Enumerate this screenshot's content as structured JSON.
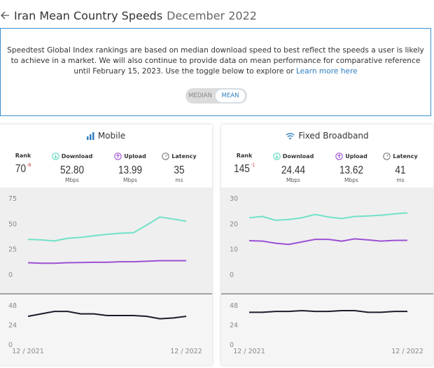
{
  "header": {
    "title": "Iran Mean Country Speeds",
    "date": "December 2022"
  },
  "info": {
    "text": "Speedtest Global Index rankings are based on median download speed to best reflect the speeds a user is likely to achieve in a market. We will also continue to provide data on mean performance for comparative reference until February 15, 2023. Use the toggle below to explore or",
    "link": "Learn more here"
  },
  "toggle": {
    "options": [
      "MEDIAN",
      "MEAN"
    ]
  },
  "panels": [
    {
      "title": "Mobile",
      "stats": [
        {
          "label": "Rank",
          "value": 70,
          "change": -8
        },
        {
          "label": "Download",
          "value": "52.80",
          "unit": "Mbps"
        },
        {
          "label": "Upload",
          "value": "13.99",
          "unit": "Mbps"
        },
        {
          "label": "Latency",
          "value": 35,
          "unit": "ms"
        }
      ],
      "categories": [
        "12 / 2021",
        null,
        null,
        null,
        null,
        null,
        null,
        null,
        null,
        null,
        null,
        null,
        "12 / 2022"
      ],
      "charts": [
        {
          "type": "line",
          "ylim": [
            0,
            75
          ],
          "yticks": [
            0,
            25,
            50,
            75
          ],
          "series": [
            {
              "color": "#72e0c8",
              "values": [
                35,
                34.5,
                33.5,
                36,
                37,
                38.5,
                40,
                41,
                41.5,
                49,
                57,
                55,
                52.8
              ]
            },
            {
              "color": "#9b50d4",
              "values": [
                12,
                11.5,
                11.5,
                12,
                12.2,
                12.5,
                12.5,
                13,
                13,
                13.5,
                14,
                14,
                13.99
              ]
            }
          ]
        },
        {
          "type": "line",
          "ylim": [
            0,
            48
          ],
          "yticks": [
            0,
            24,
            48
          ],
          "series": [
            {
              "color": "#1c1c2c",
              "values": [
                35,
                38,
                41,
                41,
                38,
                38,
                36,
                36,
                36,
                35,
                32,
                33,
                35
              ]
            }
          ]
        }
      ]
    },
    {
      "title": "Fixed Broadband",
      "stats": [
        {
          "label": "Rank",
          "value": 145,
          "change": -1
        },
        {
          "label": "Download",
          "value": "24.44",
          "unit": "Mbps"
        },
        {
          "label": "Upload",
          "value": "13.62",
          "unit": "Mbps"
        },
        {
          "label": "Latency",
          "value": 41,
          "unit": "ms"
        }
      ],
      "categories": [
        "12 / 2021",
        null,
        null,
        null,
        null,
        null,
        null,
        null,
        null,
        null,
        null,
        null,
        "12 / 2022"
      ],
      "charts": [
        {
          "type": "line",
          "ylim": [
            0,
            30
          ],
          "yticks": [
            0,
            10,
            20,
            30
          ],
          "series": [
            {
              "color": "#72e0c8",
              "values": [
                22.5,
                23,
                21.5,
                21.8,
                22.5,
                23.8,
                22.8,
                22.2,
                23,
                23.2,
                23.5,
                24,
                24.44
              ]
            },
            {
              "color": "#9b50d4",
              "values": [
                13.5,
                13.3,
                12.5,
                12,
                13,
                14,
                14,
                13.3,
                14.2,
                13.8,
                13.3,
                13.6,
                13.62
              ]
            }
          ]
        },
        {
          "type": "line",
          "ylim": [
            0,
            48
          ],
          "yticks": [
            0,
            24,
            48
          ],
          "series": [
            {
              "color": "#1c1c2c",
              "values": [
                40,
                40,
                41,
                41,
                42,
                41,
                41,
                42,
                42,
                40,
                40,
                41,
                41
              ]
            }
          ]
        }
      ]
    }
  ]
}
